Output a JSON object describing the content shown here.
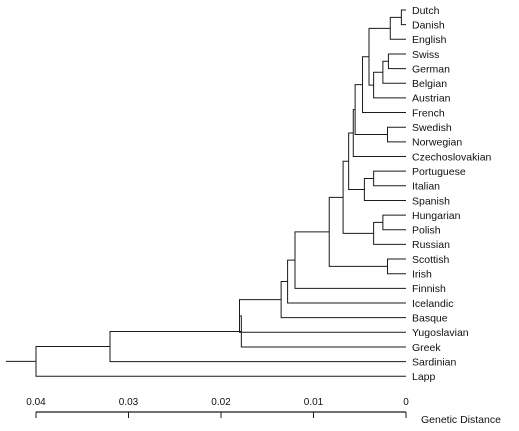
{
  "dendrogram": {
    "leaves": [
      "Dutch",
      "Danish",
      "English",
      "Swiss",
      "German",
      "Belgian",
      "Austrian",
      "French",
      "Swedish",
      "Norwegian",
      "Czechoslovakian",
      "Portuguese",
      "Italian",
      "Spanish",
      "Hungarian",
      "Polish",
      "Russian",
      "Scottish",
      "Irish",
      "Finnish",
      "Icelandic",
      "Basque",
      "Yugoslavian",
      "Greek",
      "Sardinian",
      "Lapp"
    ],
    "merges": [
      {
        "a": "Dutch",
        "b": "Danish",
        "height": 0.0005
      },
      {
        "a": "Dutch",
        "b": "English",
        "height": 0.0017
      },
      {
        "a": "Swiss",
        "b": "German",
        "height": 0.0019
      },
      {
        "a": "Swiss",
        "b": "Belgian",
        "height": 0.0025
      },
      {
        "a": "Swiss",
        "b": "Austrian",
        "height": 0.0035
      },
      {
        "a": "Dutch",
        "b": "Swiss",
        "height": 0.004
      },
      {
        "a": "Dutch",
        "b": "French",
        "height": 0.0047
      },
      {
        "a": "Swedish",
        "b": "Norwegian",
        "height": 0.002
      },
      {
        "a": "Dutch",
        "b": "Swedish",
        "height": 0.0055
      },
      {
        "a": "Dutch",
        "b": "Czechoslovakian",
        "height": 0.0057
      },
      {
        "a": "Portuguese",
        "b": "Italian",
        "height": 0.0035
      },
      {
        "a": "Portuguese",
        "b": "Spanish",
        "height": 0.0045
      },
      {
        "a": "Dutch",
        "b": "Portuguese",
        "height": 0.0062
      },
      {
        "a": "Hungarian",
        "b": "Polish",
        "height": 0.0025
      },
      {
        "a": "Hungarian",
        "b": "Russian",
        "height": 0.0035
      },
      {
        "a": "Dutch",
        "b": "Hungarian",
        "height": 0.0068
      },
      {
        "a": "Scottish",
        "b": "Irish",
        "height": 0.002
      },
      {
        "a": "Dutch",
        "b": "Scottish",
        "height": 0.0083
      },
      {
        "a": "Dutch",
        "b": "Finnish",
        "height": 0.012
      },
      {
        "a": "Dutch",
        "b": "Icelandic",
        "height": 0.0128
      },
      {
        "a": "Dutch",
        "b": "Basque",
        "height": 0.0135
      },
      {
        "a": "Dutch",
        "b": "Yugoslavian",
        "height": 0.018
      },
      {
        "a": "Dutch",
        "b": "Greek",
        "height": 0.0178
      },
      {
        "a": "Dutch",
        "b": "Sardinian",
        "height": 0.032
      },
      {
        "a": "Dutch",
        "b": "Lapp",
        "height": 0.04
      }
    ]
  },
  "axis": {
    "title": "Genetic Distance",
    "min": 0,
    "max": 0.04,
    "reversed": true,
    "ticks": [
      {
        "value": 0.04,
        "label": "0.04"
      },
      {
        "value": 0.03,
        "label": "0.03"
      },
      {
        "value": 0.02,
        "label": "0.02"
      },
      {
        "value": 0.01,
        "label": "0.01"
      },
      {
        "value": 0,
        "label": "0"
      }
    ]
  }
}
